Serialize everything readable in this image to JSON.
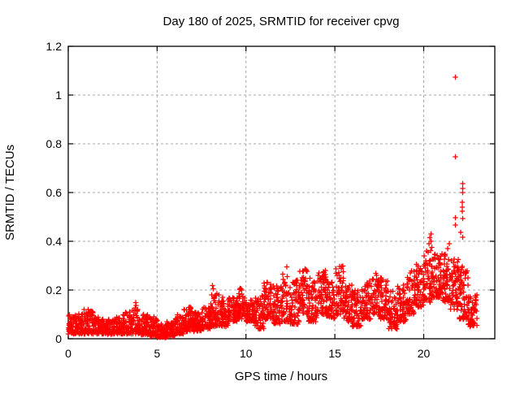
{
  "chart_data": {
    "type": "scatter",
    "title": "Day 180 of 2025, SRMTID for receiver cpvg",
    "xlabel": "GPS time / hours",
    "ylabel": "SRMTID / TECUs",
    "xlim": [
      0,
      24
    ],
    "ylim": [
      0,
      1.2
    ],
    "xticks": [
      {
        "v": 0,
        "label": "0"
      },
      {
        "v": 5,
        "label": "5"
      },
      {
        "v": 10,
        "label": "10"
      },
      {
        "v": 15,
        "label": "15"
      },
      {
        "v": 20,
        "label": "20"
      }
    ],
    "yticks": [
      {
        "v": 0,
        "label": "0"
      },
      {
        "v": 0.2,
        "label": "0.2"
      },
      {
        "v": 0.4,
        "label": "0.4"
      },
      {
        "v": 0.6,
        "label": "0.6"
      },
      {
        "v": 0.8,
        "label": "0.8"
      },
      {
        "v": 1,
        "label": "1"
      },
      {
        "v": 1.2,
        "label": "1.2"
      }
    ],
    "grid": true,
    "legend": "none",
    "marker": {
      "symbol": "plus",
      "color": "#ff0000",
      "size": 7
    },
    "band_note": "dense scatter of ~2800 epochs; bins are [t_start_h, t_end_h, value_lo_TECU, value_hi_TECU, n_points]",
    "band": [
      [
        0.0,
        0.5,
        0.02,
        0.1,
        58
      ],
      [
        0.5,
        1.0,
        0.02,
        0.11,
        58
      ],
      [
        1.0,
        1.5,
        0.02,
        0.12,
        58
      ],
      [
        1.5,
        2.0,
        0.02,
        0.09,
        58
      ],
      [
        2.0,
        2.5,
        0.018,
        0.08,
        58
      ],
      [
        2.5,
        3.0,
        0.02,
        0.09,
        58
      ],
      [
        3.0,
        3.5,
        0.02,
        0.11,
        58
      ],
      [
        3.5,
        4.0,
        0.02,
        0.12,
        58
      ],
      [
        4.0,
        4.5,
        0.015,
        0.1,
        58
      ],
      [
        4.5,
        5.0,
        0.01,
        0.09,
        58
      ],
      [
        5.0,
        5.5,
        0.005,
        0.06,
        58
      ],
      [
        5.5,
        6.0,
        0.01,
        0.07,
        58
      ],
      [
        6.0,
        6.5,
        0.02,
        0.1,
        58
      ],
      [
        6.5,
        7.0,
        0.03,
        0.13,
        58
      ],
      [
        7.0,
        7.5,
        0.03,
        0.11,
        58
      ],
      [
        7.5,
        8.0,
        0.04,
        0.13,
        58
      ],
      [
        8.0,
        8.5,
        0.05,
        0.19,
        58
      ],
      [
        8.5,
        9.0,
        0.05,
        0.18,
        58
      ],
      [
        9.0,
        9.5,
        0.07,
        0.17,
        58
      ],
      [
        9.5,
        10.0,
        0.08,
        0.21,
        58
      ],
      [
        10.0,
        10.5,
        0.07,
        0.16,
        58
      ],
      [
        10.5,
        11.0,
        0.04,
        0.18,
        58
      ],
      [
        11.0,
        11.5,
        0.08,
        0.24,
        58
      ],
      [
        11.5,
        12.0,
        0.06,
        0.22,
        58
      ],
      [
        12.0,
        12.5,
        0.07,
        0.28,
        58
      ],
      [
        12.5,
        13.0,
        0.06,
        0.24,
        58
      ],
      [
        13.0,
        13.5,
        0.1,
        0.29,
        58
      ],
      [
        13.5,
        14.0,
        0.07,
        0.25,
        58
      ],
      [
        14.0,
        14.5,
        0.1,
        0.28,
        58
      ],
      [
        14.5,
        15.0,
        0.08,
        0.25,
        58
      ],
      [
        15.0,
        15.5,
        0.1,
        0.3,
        58
      ],
      [
        15.5,
        16.0,
        0.07,
        0.22,
        58
      ],
      [
        16.0,
        16.5,
        0.05,
        0.2,
        58
      ],
      [
        16.5,
        17.0,
        0.08,
        0.24,
        58
      ],
      [
        17.0,
        17.5,
        0.1,
        0.27,
        58
      ],
      [
        17.5,
        18.0,
        0.08,
        0.25,
        58
      ],
      [
        18.0,
        18.5,
        0.04,
        0.2,
        58
      ],
      [
        18.5,
        19.0,
        0.07,
        0.22,
        58
      ],
      [
        19.0,
        19.5,
        0.1,
        0.28,
        58
      ],
      [
        19.5,
        20.0,
        0.13,
        0.31,
        58
      ],
      [
        20.0,
        20.5,
        0.15,
        0.36,
        58
      ],
      [
        20.5,
        21.0,
        0.17,
        0.35,
        58
      ],
      [
        21.0,
        21.5,
        0.15,
        0.35,
        58
      ],
      [
        21.5,
        22.0,
        0.12,
        0.33,
        58
      ],
      [
        22.0,
        22.5,
        0.08,
        0.3,
        58
      ],
      [
        22.5,
        23.0,
        0.05,
        0.18,
        58
      ]
    ],
    "outliers": [
      [
        0.9,
        0.12
      ],
      [
        3.78,
        0.127
      ],
      [
        3.8,
        0.148
      ],
      [
        3.82,
        0.136
      ],
      [
        8.12,
        0.218
      ],
      [
        8.15,
        0.205
      ],
      [
        12.3,
        0.295
      ],
      [
        20.25,
        0.355
      ],
      [
        20.3,
        0.39
      ],
      [
        20.35,
        0.415
      ],
      [
        20.38,
        0.362
      ],
      [
        20.4,
        0.43
      ],
      [
        20.42,
        0.4
      ],
      [
        20.45,
        0.375
      ],
      [
        21.35,
        0.37
      ],
      [
        21.43,
        0.39
      ],
      [
        21.78,
        1.073
      ],
      [
        21.78,
        0.747
      ],
      [
        21.78,
        0.496
      ],
      [
        21.78,
        0.467
      ],
      [
        22.08,
        0.437
      ],
      [
        22.16,
        0.56
      ],
      [
        22.16,
        0.54
      ],
      [
        22.16,
        0.523
      ],
      [
        22.19,
        0.637
      ],
      [
        22.19,
        0.617
      ],
      [
        22.19,
        0.6
      ],
      [
        22.19,
        0.493
      ],
      [
        22.19,
        0.417
      ]
    ]
  }
}
